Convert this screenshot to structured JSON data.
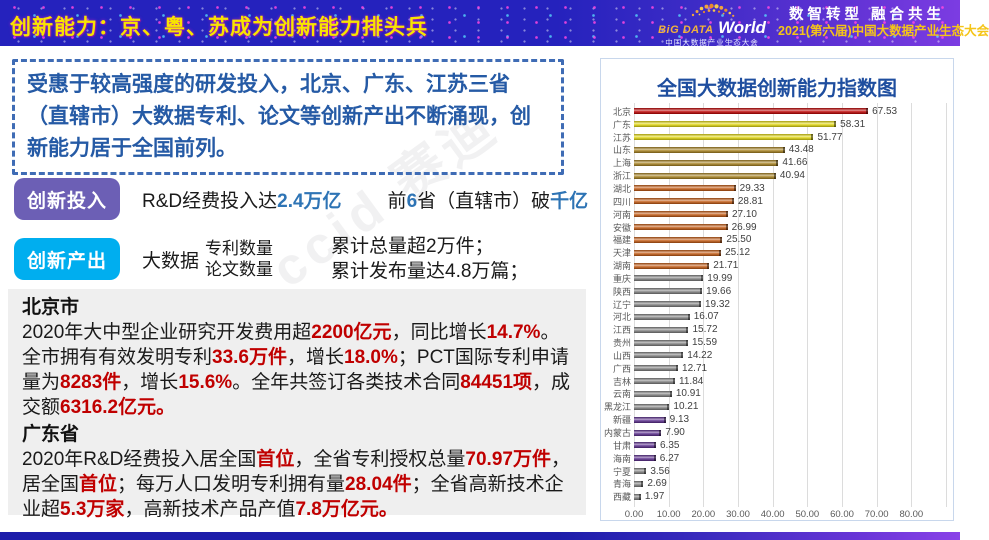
{
  "header": {
    "title": "创新能力：京、粤、苏成为创新能力排头兵",
    "logo": {
      "big": "BiG DATA",
      "world": "World",
      "sub": "中国大数据产业生态大会"
    },
    "slogan": "数智转型  融合共生",
    "event": "2021(第六届)中国大数据产业生态大会"
  },
  "watermark": "ccid 赛迪",
  "intro": {
    "text": "受惠于较高强度的研发投入，北京、广东、江苏三省（直辖市）大数据专利、论文等创新产出不断涌现，创新能力居于全国前列。"
  },
  "invest": {
    "badge": "创新投入",
    "line1": [
      {
        "t": "R&D经费投入达"
      },
      {
        "t": "2.4万亿",
        "c": "hl-blue"
      }
    ],
    "line2": [
      {
        "t": "前"
      },
      {
        "t": "6",
        "c": "hl-blue"
      },
      {
        "t": "省（直辖市）破"
      },
      {
        "t": "千亿",
        "c": "hl-blue"
      }
    ]
  },
  "output": {
    "badge": "创新产出",
    "prefix": "大数据",
    "stack": [
      "专利数量",
      "论文数量"
    ],
    "results": [
      "累计总量超2万件；",
      "累计发布量达4.8万篇；"
    ]
  },
  "detail": {
    "beijing": {
      "heading": "北京市",
      "body": [
        {
          "t": "2020年大中型企业研究开发费用超"
        },
        {
          "t": "2200亿元",
          "c": "hl-red"
        },
        {
          "t": "，同比增长"
        },
        {
          "t": "14.7%",
          "c": "hl-red"
        },
        {
          "t": "。全市拥有有效发明专利"
        },
        {
          "t": "33.6万件",
          "c": "hl-red"
        },
        {
          "t": "，增长"
        },
        {
          "t": "18.0%",
          "c": "hl-red"
        },
        {
          "t": "；PCT国际专利申请量为"
        },
        {
          "t": "8283件",
          "c": "hl-red"
        },
        {
          "t": "，增长"
        },
        {
          "t": "15.6%",
          "c": "hl-red"
        },
        {
          "t": "。全年共签订各类技术合同"
        },
        {
          "t": "84451项",
          "c": "hl-red"
        },
        {
          "t": "，成交额"
        },
        {
          "t": "6316.2亿元。",
          "c": "hl-red"
        }
      ]
    },
    "guangdong": {
      "heading": "广东省",
      "body": [
        {
          "t": "2020年R&D经费投入居全国"
        },
        {
          "t": "首位",
          "c": "hl-red"
        },
        {
          "t": "，全省专利授权总量"
        },
        {
          "t": "70.97万件",
          "c": "hl-red"
        },
        {
          "t": "，居全国"
        },
        {
          "t": "首位",
          "c": "hl-red"
        },
        {
          "t": "；每万人口发明专利拥有量"
        },
        {
          "t": "28.04件",
          "c": "hl-red"
        },
        {
          "t": "；全省高新技术企业超"
        },
        {
          "t": "5.3万家",
          "c": "hl-red"
        },
        {
          "t": "，高新技术产品产值"
        },
        {
          "t": "7.8万亿元。",
          "c": "hl-red"
        }
      ]
    }
  },
  "chart_data": {
    "type": "bar",
    "orientation": "horizontal",
    "title": "全国大数据创新能力指数图",
    "categories": [
      "北京",
      "广东",
      "江苏",
      "山东",
      "上海",
      "浙江",
      "湖北",
      "四川",
      "河南",
      "安徽",
      "福建",
      "天津",
      "湖南",
      "重庆",
      "陕西",
      "辽宁",
      "河北",
      "江西",
      "贵州",
      "山西",
      "广西",
      "吉林",
      "云南",
      "黑龙江",
      "新疆",
      "内蒙古",
      "甘肃",
      "海南",
      "宁夏",
      "青海",
      "西藏"
    ],
    "values": [
      67.53,
      58.31,
      51.77,
      43.48,
      41.66,
      40.94,
      29.33,
      28.81,
      27.1,
      26.99,
      25.5,
      25.12,
      21.71,
      19.99,
      19.66,
      19.32,
      16.07,
      15.72,
      15.59,
      14.22,
      12.71,
      11.84,
      10.91,
      10.21,
      9.13,
      7.9,
      6.35,
      6.27,
      3.56,
      2.69,
      1.97
    ],
    "colors": [
      "#c00000",
      "#e3d90e",
      "#e3d90e",
      "#a8821e",
      "#a8821e",
      "#a8821e",
      "#c55a11",
      "#c55a11",
      "#c55a11",
      "#c55a11",
      "#c55a11",
      "#c55a11",
      "#c55a11",
      "#808080",
      "#808080",
      "#808080",
      "#808080",
      "#808080",
      "#808080",
      "#808080",
      "#808080",
      "#808080",
      "#808080",
      "#808080",
      "#5b2d8e",
      "#5b2d8e",
      "#5b2d8e",
      "#5b2d8e",
      "#808080",
      "#808080",
      "#808080"
    ],
    "xlim": [
      0,
      90
    ],
    "xticks": [
      "0.00",
      "10.00",
      "20.00",
      "30.00",
      "40.00",
      "50.00",
      "60.00",
      "70.00",
      "80.00"
    ],
    "grid": true,
    "legend": false
  }
}
